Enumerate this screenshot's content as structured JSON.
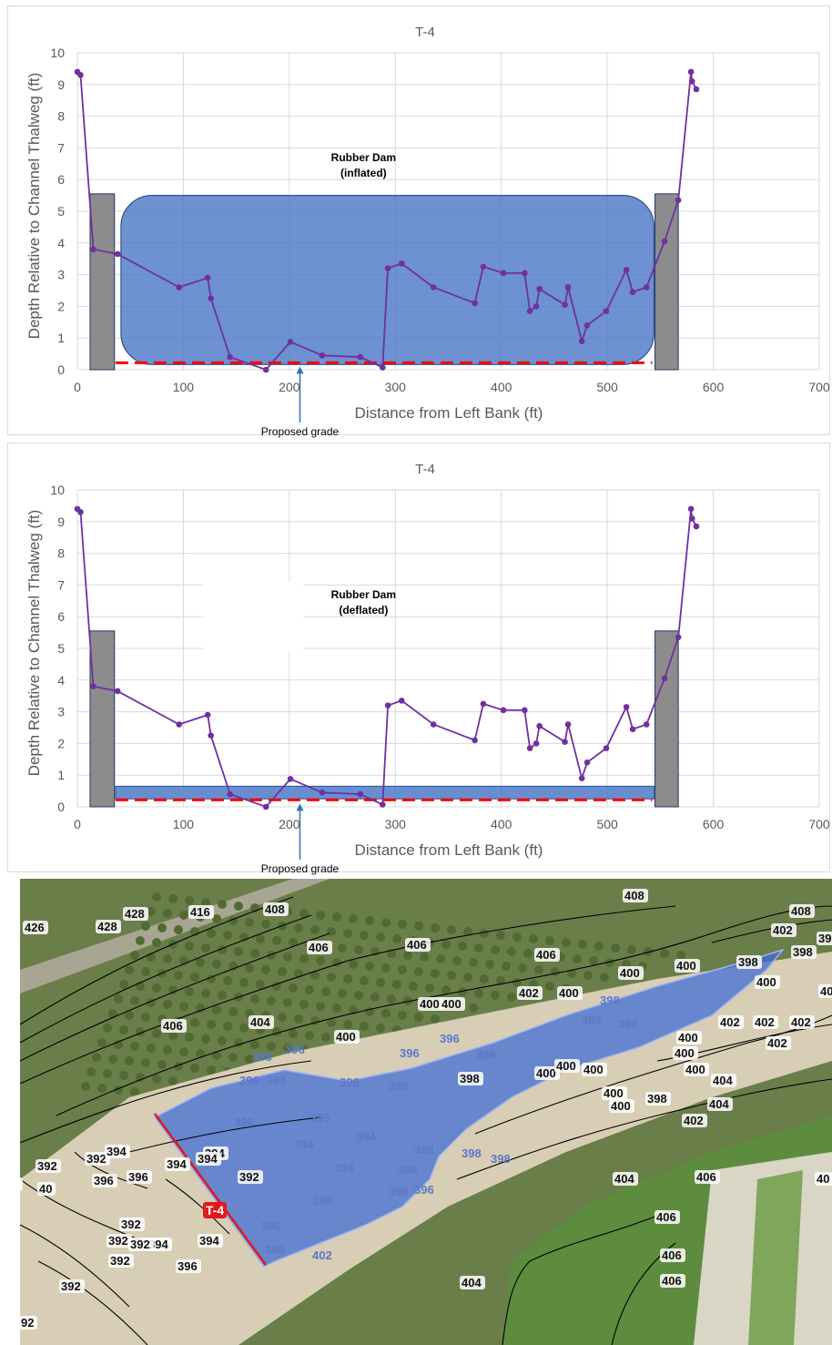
{
  "colors": {
    "profile": "#7030a0",
    "dam_fill": "#4472c4",
    "abutment_fill": "#8c8c8c",
    "grade": "#ff0000",
    "arrow": "#2e75b6",
    "grid": "#d9d9d9",
    "axis_text": "#595959",
    "map_veg": "#6a7e4a",
    "map_sand": "#d8ceb6",
    "map_field": "#5e8c3e",
    "map_pool": "#3d6bd6",
    "map_transect": "#e01a1a"
  },
  "chart_data": [
    {
      "type": "line",
      "title": "T-4",
      "xlabel": "Distance from Left Bank (ft)",
      "ylabel": "Depth Relative to Channel Thalweg (ft)",
      "xlim": [
        0,
        700
      ],
      "ylim": [
        0,
        10
      ],
      "xticks": [
        "0",
        "100",
        "200",
        "300",
        "400",
        "500",
        "600",
        "700"
      ],
      "yticks": [
        "0",
        "1",
        "2",
        "3",
        "4",
        "5",
        "6",
        "7",
        "8",
        "9",
        "10"
      ],
      "grid": true,
      "series": [
        {
          "x": [
            0,
            3,
            15,
            38,
            96,
            123,
            126,
            144,
            178,
            201,
            231,
            267,
            288,
            293,
            306,
            336,
            375,
            383,
            402,
            422,
            427,
            433,
            436,
            460,
            463,
            476,
            481,
            499,
            518,
            524,
            537,
            554,
            567,
            579,
            580,
            584
          ],
          "values": [
            9.4,
            9.3,
            3.8,
            3.65,
            2.6,
            2.9,
            2.25,
            0.4,
            0.0,
            0.88,
            0.45,
            0.4,
            0.07,
            3.2,
            3.35,
            2.6,
            2.1,
            3.25,
            3.05,
            3.05,
            1.85,
            2.0,
            2.55,
            2.05,
            2.6,
            0.9,
            1.4,
            1.85,
            3.15,
            2.45,
            2.6,
            4.05,
            5.35,
            9.4,
            9.1,
            8.85
          ]
        }
      ],
      "annotations": [
        {
          "text": "Rubber Dam",
          "x": 270,
          "y": 6.7
        },
        {
          "text": "(inflated)",
          "x": 270,
          "y": 6.2
        },
        {
          "text": "Proposed grade",
          "x": 210,
          "y": -1.95
        }
      ],
      "dam_top": 5.5,
      "dam_extent": [
        36,
        544
      ],
      "abutments": [
        [
          12,
          35
        ],
        [
          545,
          567
        ]
      ],
      "abutment_top": 5.55,
      "proposed_grade": 0.22
    },
    {
      "type": "line",
      "title": "T-4",
      "xlabel": "Distance from Left Bank (ft)",
      "ylabel": "Depth Relative to Channel Thalweg (ft)",
      "xlim": [
        0,
        700
      ],
      "ylim": [
        0,
        10
      ],
      "xticks": [
        "0",
        "100",
        "200",
        "300",
        "400",
        "500",
        "600",
        "700"
      ],
      "yticks": [
        "0",
        "1",
        "2",
        "3",
        "4",
        "5",
        "6",
        "7",
        "8",
        "9",
        "10"
      ],
      "grid": true,
      "series": [
        {
          "x": [
            0,
            3,
            15,
            38,
            96,
            123,
            126,
            144,
            178,
            201,
            231,
            267,
            288,
            293,
            306,
            336,
            375,
            383,
            402,
            422,
            427,
            433,
            436,
            460,
            463,
            476,
            481,
            499,
            518,
            524,
            537,
            554,
            567,
            579,
            580,
            584
          ],
          "values": [
            9.4,
            9.3,
            3.8,
            3.65,
            2.6,
            2.9,
            2.25,
            0.4,
            0.0,
            0.88,
            0.45,
            0.4,
            0.07,
            3.2,
            3.35,
            2.6,
            2.1,
            3.25,
            3.05,
            3.05,
            1.85,
            2.0,
            2.55,
            2.05,
            2.6,
            0.9,
            1.4,
            1.85,
            3.15,
            2.45,
            2.6,
            4.05,
            5.35,
            9.4,
            9.1,
            8.85
          ]
        }
      ],
      "annotations": [
        {
          "text": "Rubber Dam",
          "x": 270,
          "y": 6.7
        },
        {
          "text": "(deflated)",
          "x": 270,
          "y": 6.2
        },
        {
          "text": "Proposed grade",
          "x": 210,
          "y": -1.95
        }
      ],
      "dam_top": 0.65,
      "dam_extent": [
        36,
        544
      ],
      "abutments": [
        [
          12,
          35
        ],
        [
          545,
          567
        ]
      ],
      "abutment_top": 5.55,
      "proposed_grade": 0.22
    }
  ],
  "map": {
    "transect_label": "T-4",
    "contour_labels": [
      {
        "text": "408"
      },
      {
        "text": "408"
      },
      {
        "text": "402"
      },
      {
        "text": "398"
      },
      {
        "text": "398"
      },
      {
        "text": "428"
      },
      {
        "text": "416"
      },
      {
        "text": "408"
      },
      {
        "text": "426"
      },
      {
        "text": "428"
      },
      {
        "text": "406"
      },
      {
        "text": "406"
      },
      {
        "text": "406"
      },
      {
        "text": "400"
      },
      {
        "text": "400"
      },
      {
        "text": "400"
      },
      {
        "text": "400"
      },
      {
        "text": "398"
      },
      {
        "text": "402"
      },
      {
        "text": "400"
      },
      {
        "text": "398"
      },
      {
        "text": "406"
      },
      {
        "text": "404"
      },
      {
        "text": "400"
      },
      {
        "text": "400"
      },
      {
        "text": "396"
      },
      {
        "text": "398"
      },
      {
        "text": "402"
      },
      {
        "text": "402"
      },
      {
        "text": "402"
      },
      {
        "text": "400"
      },
      {
        "text": "402"
      },
      {
        "text": "396"
      },
      {
        "text": "400"
      },
      {
        "text": "396"
      },
      {
        "text": "398"
      },
      {
        "text": "396"
      },
      {
        "text": "398"
      },
      {
        "text": "400"
      },
      {
        "text": "400"
      },
      {
        "text": "404"
      },
      {
        "text": "398"
      },
      {
        "text": "400"
      },
      {
        "text": "400"
      },
      {
        "text": "400"
      },
      {
        "text": "404"
      },
      {
        "text": "396"
      },
      {
        "text": "398"
      },
      {
        "text": "396"
      },
      {
        "text": "396"
      },
      {
        "text": "400"
      },
      {
        "text": "400"
      },
      {
        "text": "398"
      },
      {
        "text": "396"
      },
      {
        "text": "402"
      },
      {
        "text": "396"
      },
      {
        "text": "394"
      },
      {
        "text": "394"
      },
      {
        "text": "394"
      },
      {
        "text": "398"
      },
      {
        "text": "398"
      },
      {
        "text": "398"
      },
      {
        "text": "392"
      },
      {
        "text": "394"
      },
      {
        "text": "394"
      },
      {
        "text": "396"
      },
      {
        "text": "394"
      },
      {
        "text": "394"
      },
      {
        "text": "392"
      },
      {
        "text": "398"
      },
      {
        "text": "398"
      },
      {
        "text": "404"
      },
      {
        "text": "406"
      },
      {
        "text": "396"
      },
      {
        "text": "392"
      },
      {
        "text": "398"
      },
      {
        "text": "406"
      },
      {
        "text": "396"
      },
      {
        "text": "392"
      },
      {
        "text": "392"
      },
      {
        "text": "394"
      },
      {
        "text": "394"
      },
      {
        "text": "396"
      },
      {
        "text": "396"
      },
      {
        "text": "402"
      },
      {
        "text": "392"
      },
      {
        "text": "396"
      },
      {
        "text": "406"
      },
      {
        "text": "404"
      },
      {
        "text": "406"
      },
      {
        "text": "392"
      },
      {
        "text": "392"
      },
      {
        "text": "40"
      },
      {
        "text": "40"
      },
      {
        "text": "2"
      },
      {
        "text": "92"
      }
    ]
  }
}
